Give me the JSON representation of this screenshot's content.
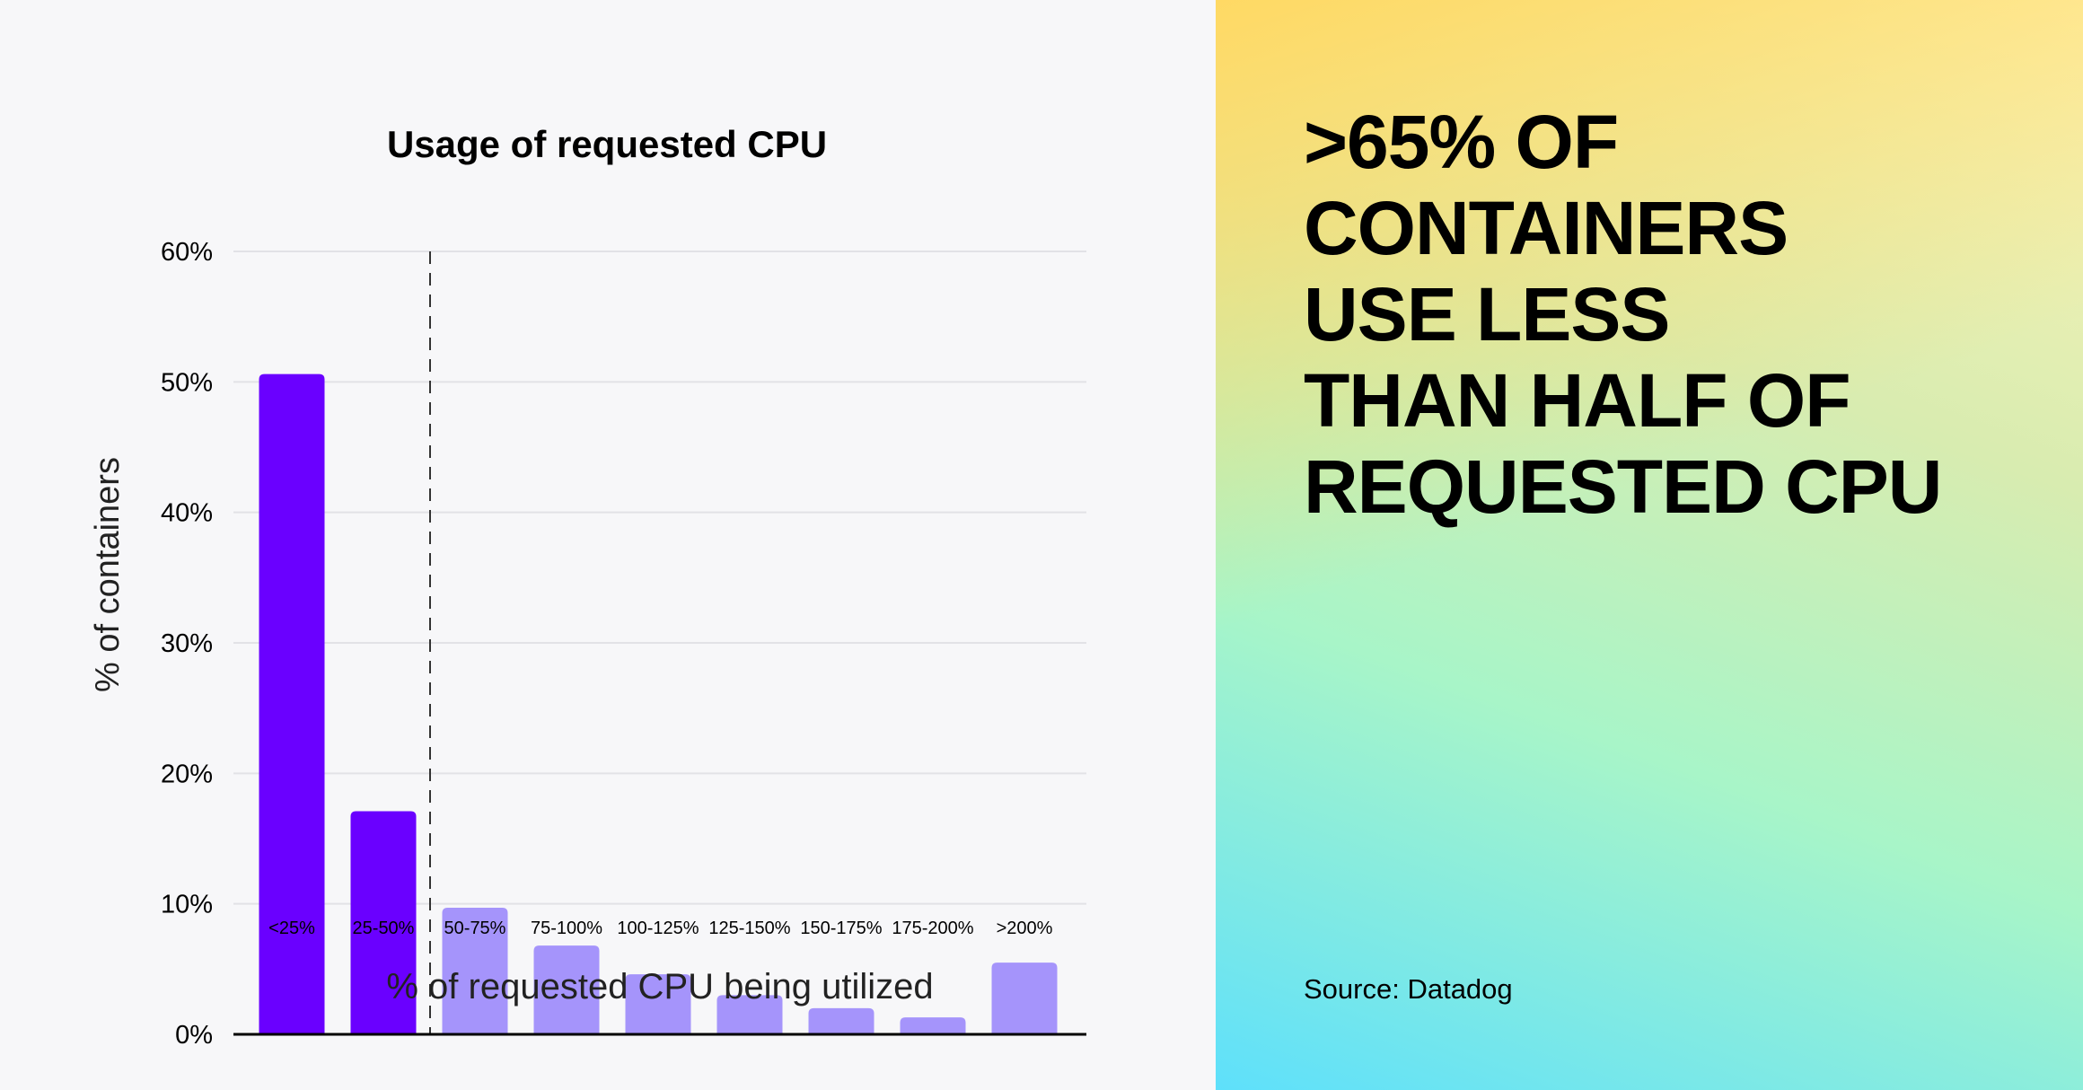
{
  "chart_data": {
    "type": "bar",
    "title": "Usage of requested CPU",
    "xlabel": "% of requested CPU being utilized",
    "ylabel": "% of containers",
    "categories": [
      "<25%",
      "25-50%",
      "50-75%",
      "75-100%",
      "100-125%",
      "125-150%",
      "150-175%",
      "175-200%",
      ">200%"
    ],
    "values": [
      50.6,
      17.1,
      9.7,
      6.8,
      4.6,
      3.0,
      2.0,
      1.3,
      5.5
    ],
    "bar_colors": [
      "#6a00ff",
      "#6a00ff",
      "#a594fb",
      "#a594fb",
      "#a594fb",
      "#a594fb",
      "#a594fb",
      "#a594fb",
      "#a594fb"
    ],
    "ylim": [
      0,
      60
    ],
    "yticks": [
      "0%",
      "10%",
      "20%",
      "30%",
      "40%",
      "50%",
      "60%"
    ],
    "grid": true,
    "annotation": "dashed vertical line between 25-50% and 50-75%"
  },
  "headline": [
    "&gt;65% OF",
    "CONTAINERS",
    "USE LESS",
    "THAN HALF OF",
    "REQUESTED CPU"
  ],
  "headline_text": [
    ">65% OF",
    "CONTAINERS",
    "USE LESS",
    "THAN HALF OF",
    "REQUESTED CPU"
  ],
  "source": "Source: Datadog"
}
